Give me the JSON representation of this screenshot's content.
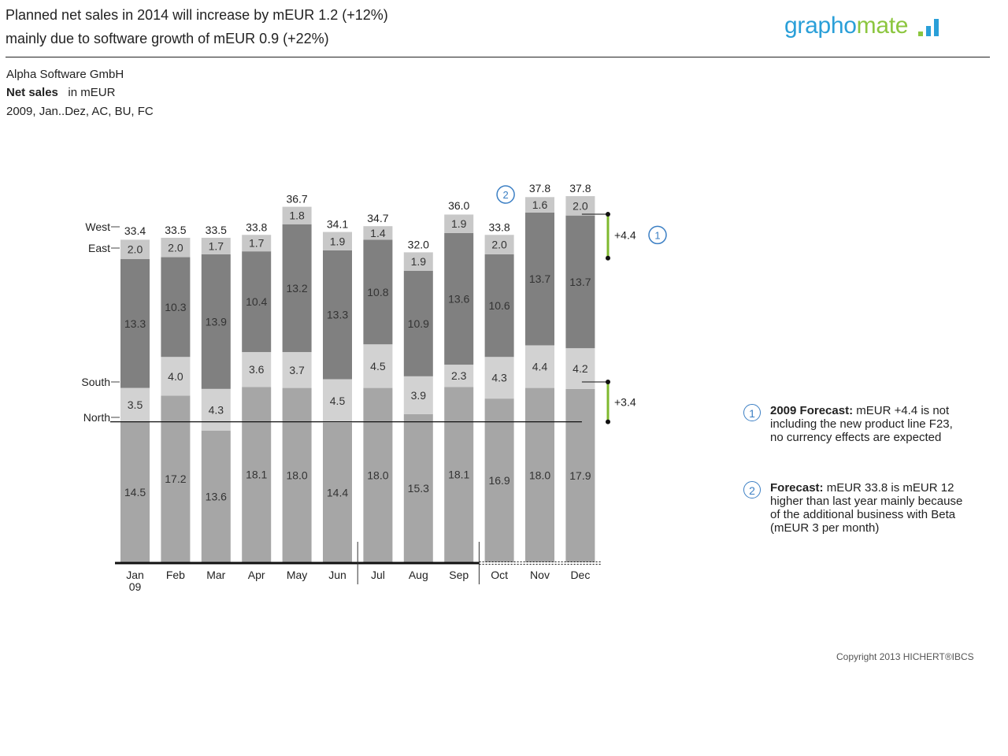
{
  "header": {
    "headline_line1": "Planned net sales in 2014 will increase by mEUR 1.2 (+12%)",
    "headline_line2": "mainly due to software growth of mEUR 0.9 (+22%)",
    "logo_text_part1": "grapho",
    "logo_text_part2": "mate",
    "logo_icon": "bar-chart-icon"
  },
  "meta": {
    "company": "Alpha Software GmbH",
    "measure": "Net sales",
    "unit": "in mEUR",
    "scope": "2009, Jan..Dez, AC, BU, FC"
  },
  "chart_data": {
    "type": "bar",
    "stacked": true,
    "categories": [
      "Jan",
      "Feb",
      "Mar",
      "Apr",
      "May",
      "Jun",
      "Jul",
      "Aug",
      "Sep",
      "Oct",
      "Nov",
      "Dec"
    ],
    "year_label": "09",
    "series": [
      {
        "name": "North",
        "color": "#a6a6a6",
        "values": [
          14.5,
          17.2,
          13.6,
          18.1,
          18.0,
          14.4,
          18.0,
          15.3,
          18.1,
          16.9,
          18.0,
          17.9
        ]
      },
      {
        "name": "South",
        "color": "#d2d2d2",
        "values": [
          3.5,
          4.0,
          4.3,
          3.6,
          3.7,
          4.5,
          4.5,
          3.9,
          2.3,
          4.3,
          4.4,
          4.2
        ]
      },
      {
        "name": "East",
        "color": "#808080",
        "values": [
          13.3,
          10.3,
          13.9,
          10.4,
          13.2,
          13.3,
          10.8,
          10.9,
          13.6,
          10.6,
          13.7,
          13.7
        ]
      },
      {
        "name": "West",
        "color": "#c8c8c8",
        "values": [
          2.0,
          2.0,
          1.7,
          1.7,
          1.8,
          1.9,
          1.4,
          1.9,
          1.9,
          2.0,
          1.6,
          2.0
        ]
      }
    ],
    "totals": [
      33.4,
      33.5,
      33.5,
      33.8,
      36.7,
      34.1,
      34.7,
      32.0,
      36.0,
      33.8,
      37.8,
      37.8
    ],
    "forecast_start_index": 9,
    "quarter_separators_after": [
      5,
      8
    ],
    "reference_lines": [
      {
        "label": "West",
        "level": 31.4
      },
      {
        "label": "East",
        "level": 31.4
      },
      {
        "label": "South",
        "level": 18.0
      },
      {
        "label": "North",
        "level": 14.5
      }
    ],
    "differences": [
      {
        "label": "+4.4",
        "marker": "1"
      },
      {
        "label": "+3.4"
      }
    ],
    "annotation_marker_oct": "2",
    "ylim": [
      0,
      40
    ],
    "grid": false,
    "legend": "left"
  },
  "notes": [
    {
      "number": "1",
      "bold": "2009 Forecast:",
      "text": " mEUR +4.4 is not including the new product line F23, no currency effects are expected"
    },
    {
      "number": "2",
      "bold": "Forecast:",
      "text": " mEUR 33.8 is mEUR 12 higher than last year mainly because of the additional business with Beta (mEUR 3 per month)"
    }
  ],
  "footer": {
    "copyright": "Copyright 2013 HICHERT®IBCS"
  }
}
